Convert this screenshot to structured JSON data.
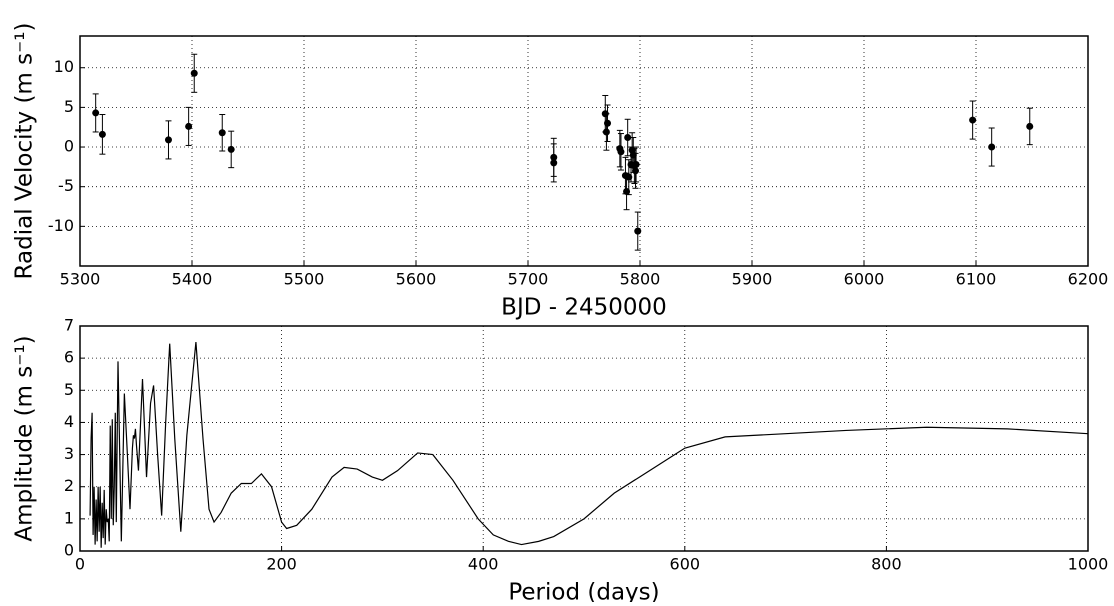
{
  "chart_data": [
    {
      "type": "scatter",
      "xlabel": "BJD - 2450000",
      "ylabel": "Radial Velocity (m s⁻¹)",
      "color": "#000000",
      "grid": true,
      "xlim": [
        5300,
        6200
      ],
      "xticks": [
        5300,
        5400,
        5500,
        5600,
        5700,
        5800,
        5900,
        6000,
        6100,
        6200
      ],
      "ylim": [
        -15,
        14
      ],
      "yticks": [
        -10,
        -5,
        0,
        5,
        10
      ],
      "x": [
        5314,
        5320,
        5379,
        5397,
        5402,
        5427,
        5435,
        5723,
        5723,
        5769,
        5770,
        5771,
        5782,
        5783,
        5787,
        5788,
        5789,
        5790,
        5792,
        5793,
        5794,
        5795,
        5796,
        5796.5,
        5798,
        6097,
        6114,
        6148
      ],
      "values": [
        4.3,
        1.6,
        0.9,
        2.6,
        9.3,
        1.8,
        -0.3,
        -1.3,
        -2.0,
        4.2,
        1.9,
        3.0,
        -0.2,
        -0.6,
        -3.6,
        -5.6,
        1.2,
        -3.8,
        -2.2,
        -0.4,
        -1.0,
        -2.4,
        -3.0,
        -2.2,
        -10.6,
        3.4,
        0.0,
        2.6
      ],
      "errors": [
        2.4,
        2.5,
        2.4,
        2.4,
        2.4,
        2.3,
        2.3,
        2.4,
        2.4,
        2.3,
        2.3,
        2.3,
        2.3,
        2.3,
        2.3,
        2.3,
        2.3,
        2.2,
        2.2,
        2.2,
        2.2,
        2.2,
        2.2,
        2.2,
        2.4,
        2.4,
        2.4,
        2.3
      ]
    },
    {
      "type": "line",
      "xlabel": "Period (days)",
      "ylabel": "Amplitude (m s⁻¹)",
      "color": "#000000",
      "grid": true,
      "xlim": [
        0,
        1000
      ],
      "xticks": [
        0,
        200,
        400,
        600,
        800,
        1000
      ],
      "ylim": [
        0,
        7
      ],
      "yticks": [
        0,
        1,
        2,
        3,
        4,
        5,
        6,
        7
      ],
      "x": [
        10,
        11,
        12,
        13,
        14,
        15,
        16,
        17,
        18,
        19,
        20,
        21,
        22,
        23,
        24,
        25,
        26,
        27,
        28,
        29,
        30,
        31,
        32,
        33,
        34,
        35,
        36,
        37.7,
        41,
        44,
        47,
        49.6,
        52,
        53,
        54,
        55,
        56,
        58,
        62,
        66,
        70,
        73,
        77,
        81,
        85,
        89,
        94,
        100,
        106,
        115,
        122,
        128,
        133,
        140,
        150,
        160,
        170,
        180,
        190,
        200,
        205,
        215,
        230,
        250,
        262,
        275,
        290,
        300,
        315,
        335,
        350,
        370,
        395,
        410,
        425,
        438,
        455,
        470,
        500,
        530,
        555,
        575,
        600,
        640,
        700,
        760,
        840,
        920,
        1000
      ],
      "values": [
        1.1,
        3.5,
        4.3,
        0.5,
        2.0,
        0.2,
        1.6,
        0.3,
        2.0,
        0.6,
        2.0,
        0.1,
        1.5,
        0.4,
        1.9,
        0.2,
        1.3,
        0.9,
        1.0,
        0.3,
        3.9,
        1.0,
        4.1,
        0.8,
        2.0,
        4.3,
        0.9,
        5.9,
        0.3,
        4.9,
        3.0,
        1.3,
        3.2,
        3.6,
        3.5,
        3.8,
        3.3,
        2.5,
        5.35,
        2.3,
        4.6,
        5.15,
        3.0,
        1.1,
        4.0,
        6.45,
        3.5,
        0.6,
        3.6,
        6.5,
        3.5,
        1.3,
        0.9,
        1.2,
        1.8,
        2.1,
        2.1,
        2.4,
        2.0,
        0.9,
        0.7,
        0.8,
        1.3,
        2.3,
        2.6,
        2.55,
        2.3,
        2.2,
        2.5,
        3.05,
        3.0,
        2.2,
        1.0,
        0.5,
        0.3,
        0.2,
        0.3,
        0.45,
        1.0,
        1.8,
        2.3,
        2.7,
        3.2,
        3.55,
        3.65,
        3.75,
        3.85,
        3.8,
        3.65
      ]
    }
  ]
}
